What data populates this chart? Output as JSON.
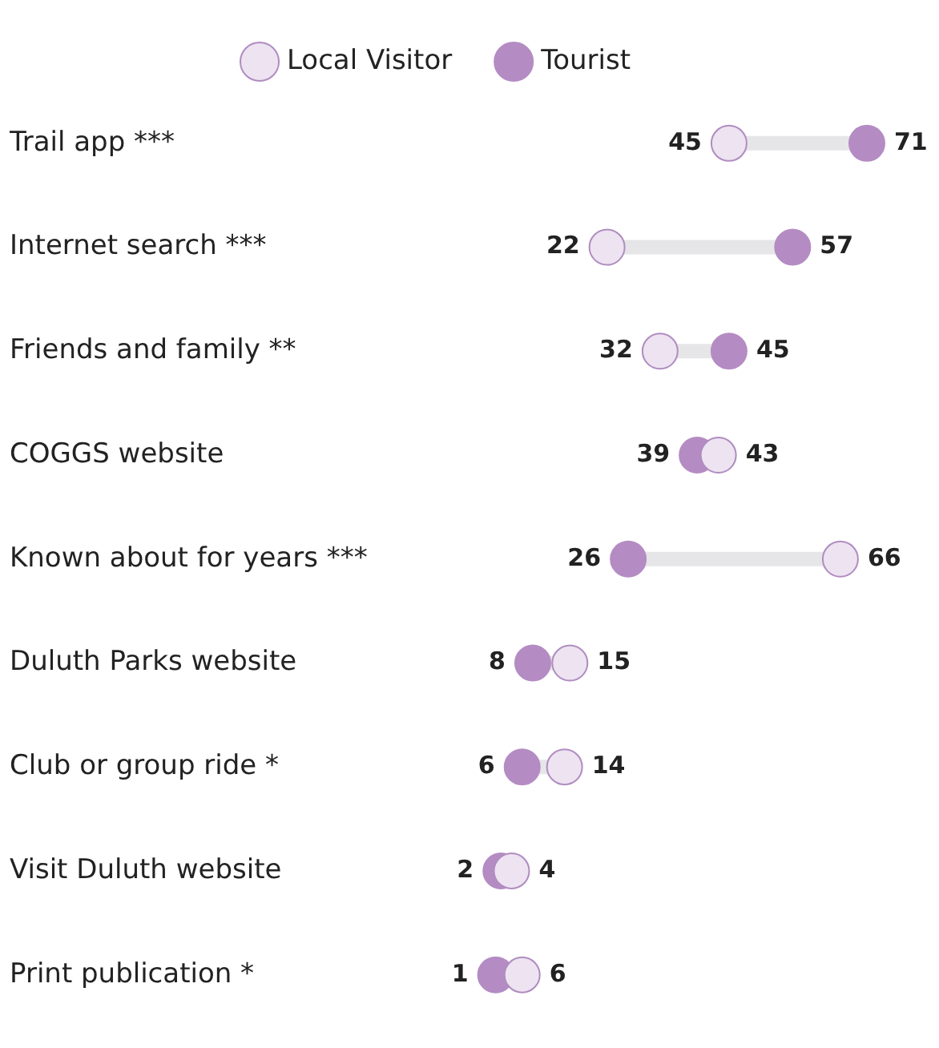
{
  "chart_data": {
    "type": "scatter",
    "orientation": "horizontal",
    "legend": "top",
    "tick_labels": "y",
    "marker": "circle",
    "data_labels": true,
    "categories": [
      "Trail app ***",
      "Internet search ***",
      "Friends and family **",
      "COGGS website",
      "Known about for years ***",
      "Duluth Parks website",
      "Club or group ride *",
      "Visit Duluth website",
      "Print publication *"
    ],
    "series": [
      {
        "name": "Local Visitor",
        "color": "#ede3f1",
        "values": [
          45,
          22,
          32,
          43,
          66,
          15,
          14,
          4,
          6
        ]
      },
      {
        "name": "Tourist",
        "color": "#b48cc3",
        "values": [
          71,
          57,
          45,
          39,
          26,
          8,
          6,
          2,
          1
        ]
      }
    ]
  }
}
